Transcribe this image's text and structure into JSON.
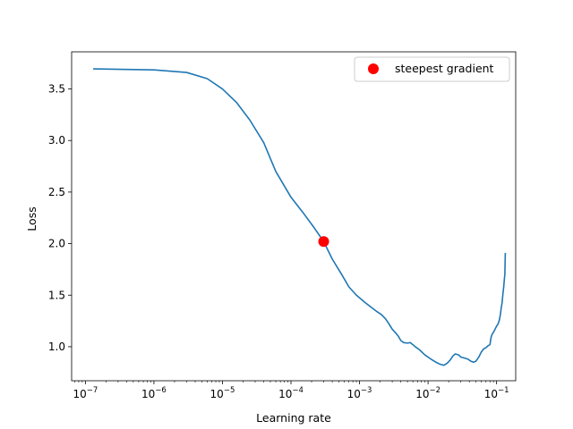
{
  "chart_data": {
    "type": "line",
    "title": "",
    "xlabel": "Learning rate",
    "ylabel": "Loss",
    "xscale": "log",
    "xlim": [
      6.3e-08,
      0.19
    ],
    "ylim": [
      0.67,
      3.86
    ],
    "grid": false,
    "legend": {
      "position": "top-right",
      "entries": [
        "steepest gradient"
      ]
    },
    "x_ticks": [
      {
        "value": 1e-07,
        "base": "10",
        "exp": "−7"
      },
      {
        "value": 1e-06,
        "base": "10",
        "exp": "−6"
      },
      {
        "value": 1e-05,
        "base": "10",
        "exp": "−5"
      },
      {
        "value": 0.0001,
        "base": "10",
        "exp": "−4"
      },
      {
        "value": 0.001,
        "base": "10",
        "exp": "−3"
      },
      {
        "value": 0.01,
        "base": "10",
        "exp": "−2"
      },
      {
        "value": 0.1,
        "base": "10",
        "exp": "−1"
      }
    ],
    "y_ticks": [
      {
        "value": 1.0,
        "label": "1.0"
      },
      {
        "value": 1.5,
        "label": "1.5"
      },
      {
        "value": 2.0,
        "label": "2.0"
      },
      {
        "value": 2.5,
        "label": "2.5"
      },
      {
        "value": 3.0,
        "label": "3.0"
      },
      {
        "value": 3.5,
        "label": "3.5"
      }
    ],
    "series": [
      {
        "color": "#1f77b4",
        "points": [
          [
            1.3e-07,
            3.695
          ],
          [
            1e-06,
            3.685
          ],
          [
            3e-06,
            3.66
          ],
          [
            6e-06,
            3.6
          ],
          [
            1e-05,
            3.5
          ],
          [
            1.6e-05,
            3.37
          ],
          [
            2.5e-05,
            3.2
          ],
          [
            4e-05,
            2.98
          ],
          [
            6e-05,
            2.7
          ],
          [
            0.0001,
            2.45
          ],
          [
            0.00015,
            2.3
          ],
          [
            0.00022,
            2.15
          ],
          [
            0.0003,
            2.02
          ],
          [
            0.0004,
            1.85
          ],
          [
            0.00055,
            1.7
          ],
          [
            0.0007,
            1.58
          ],
          [
            0.0009,
            1.5
          ],
          [
            0.0012,
            1.43
          ],
          [
            0.0015,
            1.38
          ],
          [
            0.0018,
            1.34
          ],
          [
            0.0021,
            1.31
          ],
          [
            0.0024,
            1.27
          ],
          [
            0.0027,
            1.22
          ],
          [
            0.003,
            1.17
          ],
          [
            0.0034,
            1.13
          ],
          [
            0.0037,
            1.1
          ],
          [
            0.004,
            1.06
          ],
          [
            0.0044,
            1.04
          ],
          [
            0.005,
            1.035
          ],
          [
            0.0055,
            1.04
          ],
          [
            0.006,
            1.02
          ],
          [
            0.0065,
            1.0
          ],
          [
            0.0075,
            0.97
          ],
          [
            0.009,
            0.92
          ],
          [
            0.011,
            0.88
          ],
          [
            0.013,
            0.85
          ],
          [
            0.015,
            0.83
          ],
          [
            0.017,
            0.82
          ],
          [
            0.019,
            0.84
          ],
          [
            0.021,
            0.87
          ],
          [
            0.023,
            0.91
          ],
          [
            0.025,
            0.93
          ],
          [
            0.028,
            0.92
          ],
          [
            0.03,
            0.9
          ],
          [
            0.034,
            0.89
          ],
          [
            0.038,
            0.88
          ],
          [
            0.042,
            0.86
          ],
          [
            0.046,
            0.85
          ],
          [
            0.05,
            0.86
          ],
          [
            0.055,
            0.9
          ],
          [
            0.06,
            0.95
          ],
          [
            0.065,
            0.98
          ],
          [
            0.07,
            0.99
          ],
          [
            0.075,
            1.01
          ],
          [
            0.08,
            1.02
          ],
          [
            0.083,
            1.09
          ],
          [
            0.086,
            1.12
          ],
          [
            0.09,
            1.14
          ],
          [
            0.095,
            1.17
          ],
          [
            0.1,
            1.2
          ],
          [
            0.105,
            1.22
          ],
          [
            0.11,
            1.26
          ],
          [
            0.114,
            1.32
          ],
          [
            0.117,
            1.38
          ],
          [
            0.12,
            1.42
          ],
          [
            0.124,
            1.52
          ],
          [
            0.127,
            1.58
          ],
          [
            0.13,
            1.66
          ],
          [
            0.132,
            1.7
          ],
          [
            0.134,
            1.91
          ]
        ]
      }
    ],
    "annotations": [
      {
        "label": "steepest gradient",
        "x": 0.0003,
        "y": 2.02,
        "color": "#ff0000",
        "marker": "circle"
      }
    ]
  }
}
